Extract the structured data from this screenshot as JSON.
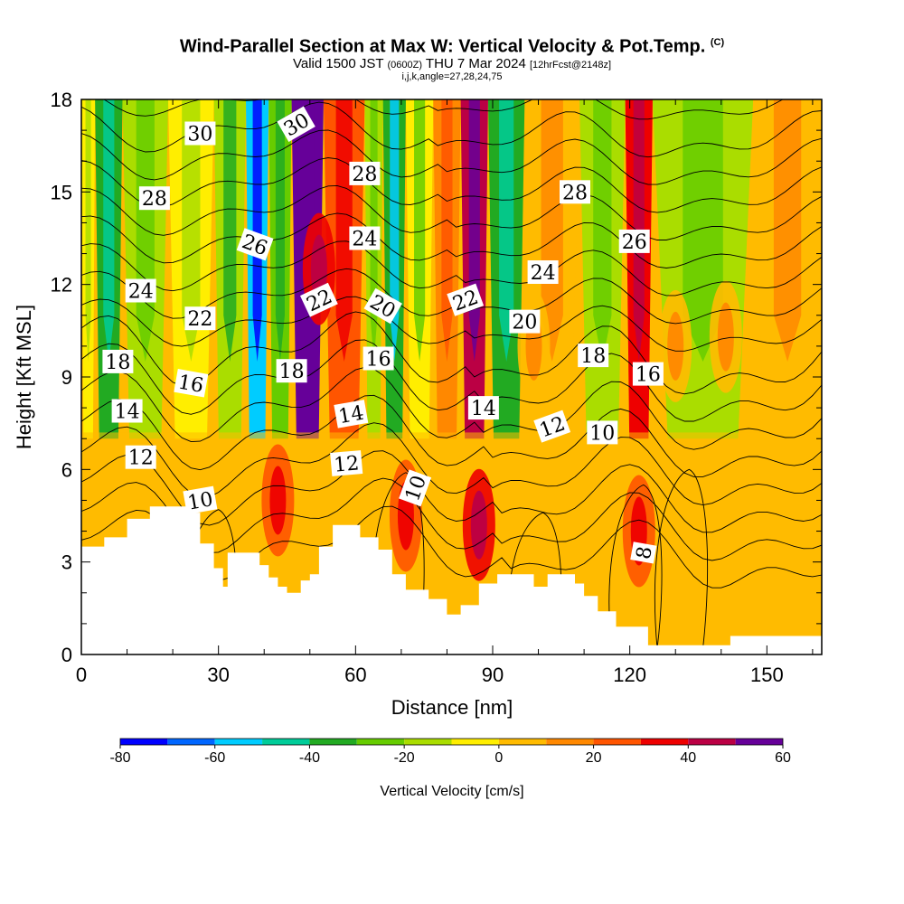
{
  "header": {
    "title": "Wind-Parallel Section at Max W: Vertical Velocity & Pot.Temp.",
    "copyright": "(C)",
    "valid_prefix": "Valid 1500 JST",
    "valid_utc": "(0600Z)",
    "valid_date": "THU 7 Mar 2024",
    "forecast": "[12hrFcst@2148z]",
    "indices": "i,j,k,angle=27,28,24,75"
  },
  "chart_data": {
    "type": "heatmap",
    "title": "Wind-Parallel Section at Max W: Vertical Velocity & Pot.Temp.",
    "xlabel": "Distance [nm]",
    "ylabel": "Height [Kft MSL]",
    "xlim": [
      0,
      162
    ],
    "ylim": [
      0,
      18
    ],
    "x_ticks": [
      "0",
      "30",
      "60",
      "90",
      "120",
      "150"
    ],
    "y_ticks": [
      "0",
      "3",
      "6",
      "9",
      "12",
      "15",
      "18"
    ],
    "colorbar": {
      "label": "Vertical Velocity [cm/s]",
      "range": [
        -80,
        60
      ],
      "tick_labels": [
        "-80",
        "-60",
        "-40",
        "-20",
        "0",
        "20",
        "40",
        "60"
      ],
      "colors": [
        "#0000ff",
        "#0066ff",
        "#00ccff",
        "#00cc99",
        "#22aa22",
        "#66cc00",
        "#aadd00",
        "#ffee00",
        "#ffbb00",
        "#ff8800",
        "#ff5500",
        "#ee0000",
        "#bb0044",
        "#660099"
      ]
    },
    "terrain": [
      [
        0,
        3.5
      ],
      [
        5,
        3.5
      ],
      [
        5,
        3.8
      ],
      [
        10,
        3.8
      ],
      [
        10,
        4.4
      ],
      [
        15,
        4.4
      ],
      [
        15,
        4.8
      ],
      [
        25,
        4.8
      ],
      [
        25,
        4.6
      ],
      [
        26,
        4.6
      ],
      [
        26,
        3.6
      ],
      [
        29,
        3.6
      ],
      [
        29,
        2.8
      ],
      [
        31,
        2.8
      ],
      [
        31,
        2.2
      ],
      [
        32,
        2.2
      ],
      [
        32,
        3.3
      ],
      [
        39,
        3.3
      ],
      [
        39,
        2.9
      ],
      [
        41,
        2.9
      ],
      [
        41,
        2.5
      ],
      [
        43,
        2.5
      ],
      [
        43,
        2.2
      ],
      [
        45,
        2.2
      ],
      [
        45,
        2.0
      ],
      [
        48,
        2.0
      ],
      [
        48,
        2.4
      ],
      [
        50,
        2.4
      ],
      [
        50,
        2.6
      ],
      [
        52,
        2.6
      ],
      [
        52,
        3.5
      ],
      [
        55,
        3.5
      ],
      [
        55,
        4.2
      ],
      [
        61,
        4.2
      ],
      [
        61,
        3.8
      ],
      [
        65,
        3.8
      ],
      [
        65,
        3.4
      ],
      [
        68,
        3.4
      ],
      [
        68,
        2.6
      ],
      [
        71,
        2.6
      ],
      [
        71,
        2.1
      ],
      [
        76,
        2.1
      ],
      [
        76,
        1.8
      ],
      [
        80,
        1.8
      ],
      [
        80,
        1.3
      ],
      [
        83,
        1.3
      ],
      [
        83,
        1.6
      ],
      [
        87,
        1.6
      ],
      [
        87,
        2.3
      ],
      [
        91,
        2.3
      ],
      [
        91,
        2.6
      ],
      [
        99,
        2.6
      ],
      [
        99,
        2.2
      ],
      [
        102,
        2.2
      ],
      [
        102,
        2.6
      ],
      [
        108,
        2.6
      ],
      [
        108,
        2.3
      ],
      [
        110,
        2.3
      ],
      [
        110,
        1.9
      ],
      [
        113,
        1.9
      ],
      [
        113,
        1.4
      ],
      [
        117,
        1.4
      ],
      [
        117,
        0.9
      ],
      [
        124,
        0.9
      ],
      [
        124,
        0.3
      ],
      [
        142,
        0.3
      ],
      [
        142,
        0.6
      ],
      [
        162,
        0.6
      ],
      [
        162,
        0
      ],
      [
        0,
        0
      ]
    ],
    "velocity_bands": [
      {
        "x": 0,
        "w": 3,
        "value": -5
      },
      {
        "x": 3,
        "w": 6,
        "value": -35
      },
      {
        "x": 9,
        "w": 10,
        "value": -12
      },
      {
        "x": 19,
        "w": 10,
        "value": -6
      },
      {
        "x": 29,
        "w": 7,
        "value": -20
      },
      {
        "x": 36,
        "w": 5,
        "value": -60
      },
      {
        "x": 41,
        "w": 5,
        "value": -25
      },
      {
        "x": 46,
        "w": 7,
        "value": 50
      },
      {
        "x": 53,
        "w": 9,
        "value": 25
      },
      {
        "x": 62,
        "w": 4,
        "value": -15
      },
      {
        "x": 66,
        "w": 5,
        "value": -40
      },
      {
        "x": 71,
        "w": 6,
        "value": -10
      },
      {
        "x": 77,
        "w": 6,
        "value": 15
      },
      {
        "x": 83,
        "w": 6,
        "value": 40
      },
      {
        "x": 89,
        "w": 8,
        "value": -35
      },
      {
        "x": 97,
        "w": 12,
        "value": 5
      },
      {
        "x": 109,
        "w": 10,
        "value": -15
      },
      {
        "x": 119,
        "w": 6,
        "value": 35
      },
      {
        "x": 125,
        "w": 22,
        "value": -18
      },
      {
        "x": 147,
        "w": 15,
        "value": 5
      }
    ],
    "low_level_value": 5,
    "warm_cells": [
      {
        "x": 43,
        "y": 5.0,
        "value": 35
      },
      {
        "x": 52,
        "y": 12.5,
        "value": 45
      },
      {
        "x": 71,
        "y": 4.5,
        "value": 38
      },
      {
        "x": 87,
        "y": 4.2,
        "value": 42
      },
      {
        "x": 122,
        "y": 4.0,
        "value": 38
      },
      {
        "x": 130,
        "y": 10.0,
        "value": 15
      },
      {
        "x": 141,
        "y": 10.3,
        "value": 15
      },
      {
        "x": 99,
        "y": 10.0,
        "value": 15
      }
    ],
    "theta_contours": [
      8,
      10,
      12,
      14,
      16,
      18,
      20,
      22,
      24,
      26,
      28,
      30
    ],
    "contour_labels": [
      {
        "text": "30",
        "x": 26,
        "y": 16.9,
        "angle": 0
      },
      {
        "text": "30",
        "x": 47,
        "y": 17.2,
        "angle": -30
      },
      {
        "text": "28",
        "x": 16,
        "y": 14.8,
        "angle": 0
      },
      {
        "text": "28",
        "x": 62,
        "y": 15.6,
        "angle": 0
      },
      {
        "text": "28",
        "x": 108,
        "y": 15.0,
        "angle": 0
      },
      {
        "text": "26",
        "x": 38,
        "y": 13.3,
        "angle": 20
      },
      {
        "text": "26",
        "x": 121,
        "y": 13.4,
        "angle": 0
      },
      {
        "text": "24",
        "x": 13,
        "y": 11.8,
        "angle": 0
      },
      {
        "text": "24",
        "x": 62,
        "y": 13.5,
        "angle": 0
      },
      {
        "text": "24",
        "x": 101,
        "y": 12.4,
        "angle": 0
      },
      {
        "text": "22",
        "x": 26,
        "y": 10.9,
        "angle": 0
      },
      {
        "text": "22",
        "x": 52,
        "y": 11.5,
        "angle": -25
      },
      {
        "text": "22",
        "x": 84,
        "y": 11.5,
        "angle": -20
      },
      {
        "text": "20",
        "x": 66,
        "y": 11.3,
        "angle": 30
      },
      {
        "text": "20",
        "x": 97,
        "y": 10.8,
        "angle": 0
      },
      {
        "text": "18",
        "x": 8,
        "y": 9.5,
        "angle": 0
      },
      {
        "text": "18",
        "x": 46,
        "y": 9.2,
        "angle": 0
      },
      {
        "text": "18",
        "x": 112,
        "y": 9.7,
        "angle": 0
      },
      {
        "text": "16",
        "x": 24,
        "y": 8.8,
        "angle": 10
      },
      {
        "text": "16",
        "x": 65,
        "y": 9.6,
        "angle": 0
      },
      {
        "text": "16",
        "x": 124,
        "y": 9.1,
        "angle": 0
      },
      {
        "text": "14",
        "x": 10,
        "y": 7.9,
        "angle": 0
      },
      {
        "text": "14",
        "x": 59,
        "y": 7.8,
        "angle": -10
      },
      {
        "text": "14",
        "x": 88,
        "y": 8.0,
        "angle": 0
      },
      {
        "text": "12",
        "x": 13,
        "y": 6.4,
        "angle": 0
      },
      {
        "text": "12",
        "x": 58,
        "y": 6.2,
        "angle": -5
      },
      {
        "text": "12",
        "x": 103,
        "y": 7.4,
        "angle": -20
      },
      {
        "text": "10",
        "x": 26,
        "y": 5.0,
        "angle": -10
      },
      {
        "text": "10",
        "x": 73,
        "y": 5.4,
        "angle": -70
      },
      {
        "text": "10",
        "x": 114,
        "y": 7.2,
        "angle": 0
      },
      {
        "text": "8",
        "x": 123,
        "y": 3.3,
        "angle": -80
      }
    ]
  }
}
